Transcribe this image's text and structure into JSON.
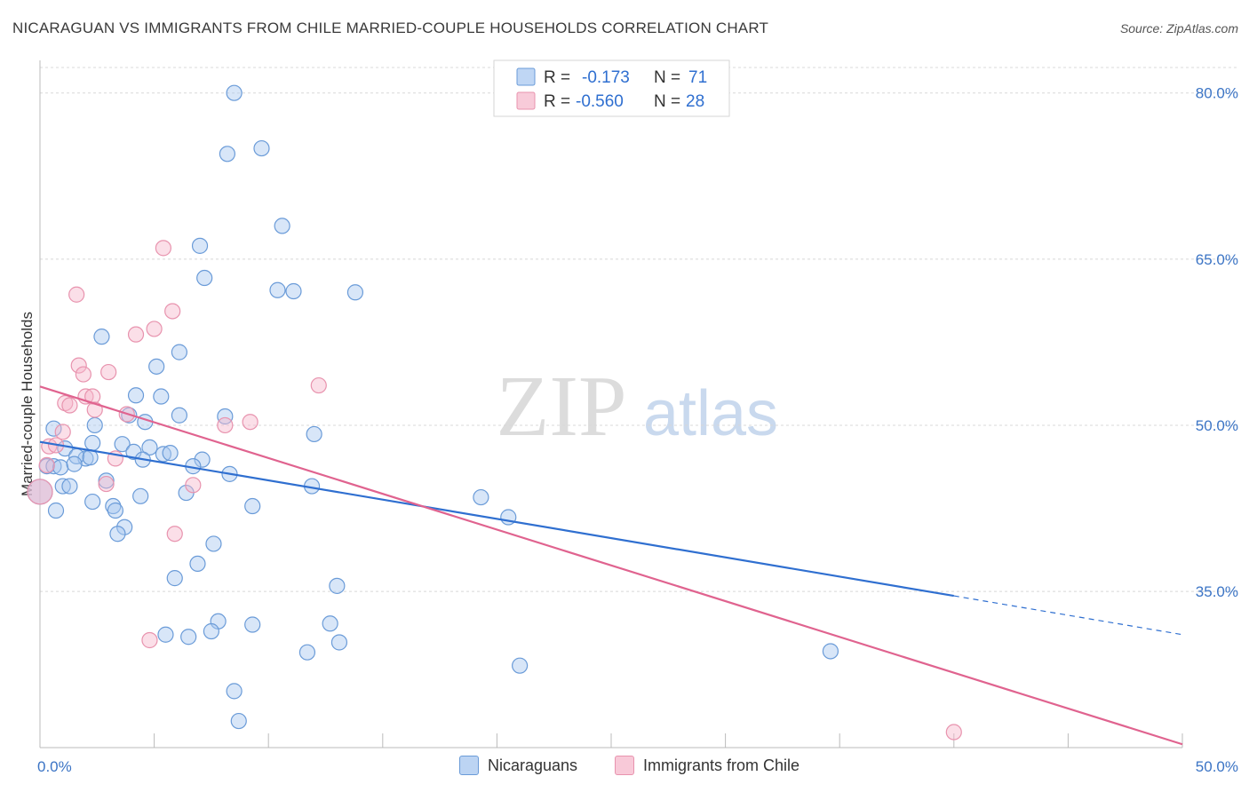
{
  "title": "NICARAGUAN VS IMMIGRANTS FROM CHILE MARRIED-COUPLE HOUSEHOLDS CORRELATION CHART",
  "source": "Source: ZipAtlas.com",
  "watermark": {
    "zip": "ZIP",
    "atlas": "atlas"
  },
  "legend": {
    "series1": {
      "r_label": "R =",
      "r_value": "-0.173",
      "n_label": "N =",
      "n_value": "71"
    },
    "series2": {
      "r_label": "R =",
      "r_value": "-0.560",
      "n_label": "N =",
      "n_value": "28"
    }
  },
  "colors": {
    "blue_fill": "#a9c8f0",
    "blue_stroke": "#6a9bd8",
    "blue_line": "#2f6fd0",
    "pink_fill": "#f6b9cc",
    "pink_stroke": "#e893ae",
    "pink_line": "#e0638f",
    "grid": "#d8d8d8",
    "tick_text": "#3b74c5"
  },
  "chart_data": {
    "type": "scatter",
    "title": "NICARAGUAN VS IMMIGRANTS FROM CHILE MARRIED-COUPLE HOUSEHOLDS CORRELATION CHART",
    "xlabel": "",
    "ylabel": "Married-couple Households",
    "xlim": [
      0,
      50
    ],
    "ylim": [
      20.9,
      82.3
    ],
    "x_tick_labels": [
      "0.0%",
      "50.0%"
    ],
    "y_ticks": [
      35,
      50,
      65,
      80
    ],
    "y_tick_labels": [
      "35.0%",
      "50.0%",
      "65.0%",
      "80.0%"
    ],
    "grid": true,
    "legend_position": "bottom",
    "series": [
      {
        "name": "Nicaraguans",
        "color": "#a9c8f0",
        "points": [
          [
            8.5,
            80.0
          ],
          [
            9.7,
            75.0
          ],
          [
            8.2,
            74.5
          ],
          [
            10.6,
            68.0
          ],
          [
            7.0,
            66.2
          ],
          [
            7.2,
            63.3
          ],
          [
            10.4,
            62.2
          ],
          [
            11.1,
            62.1
          ],
          [
            13.8,
            62.0
          ],
          [
            2.7,
            58.0
          ],
          [
            6.1,
            56.6
          ],
          [
            5.1,
            55.3
          ],
          [
            4.2,
            52.7
          ],
          [
            5.3,
            52.6
          ],
          [
            2.4,
            50.0
          ],
          [
            3.9,
            50.9
          ],
          [
            4.6,
            50.3
          ],
          [
            6.1,
            50.9
          ],
          [
            8.1,
            50.8
          ],
          [
            0.6,
            49.7
          ],
          [
            12.0,
            49.2
          ],
          [
            2.3,
            48.4
          ],
          [
            3.6,
            48.3
          ],
          [
            4.8,
            48.0
          ],
          [
            1.1,
            47.9
          ],
          [
            4.1,
            47.6
          ],
          [
            5.4,
            47.4
          ],
          [
            5.7,
            47.5
          ],
          [
            2.0,
            47.0
          ],
          [
            1.6,
            47.2
          ],
          [
            2.2,
            47.1
          ],
          [
            4.5,
            46.9
          ],
          [
            7.1,
            46.9
          ],
          [
            6.7,
            46.3
          ],
          [
            0.3,
            46.3
          ],
          [
            0.6,
            46.3
          ],
          [
            0.9,
            46.2
          ],
          [
            1.5,
            46.5
          ],
          [
            8.3,
            45.6
          ],
          [
            2.9,
            45.0
          ],
          [
            1.0,
            44.5
          ],
          [
            1.3,
            44.5
          ],
          [
            11.9,
            44.5
          ],
          [
            0.0,
            44.0
          ],
          [
            6.4,
            43.9
          ],
          [
            4.4,
            43.6
          ],
          [
            19.3,
            43.5
          ],
          [
            2.3,
            43.1
          ],
          [
            0.7,
            42.3
          ],
          [
            9.3,
            42.7
          ],
          [
            3.2,
            42.7
          ],
          [
            3.3,
            42.3
          ],
          [
            20.5,
            41.7
          ],
          [
            3.7,
            40.8
          ],
          [
            3.4,
            40.2
          ],
          [
            7.6,
            39.3
          ],
          [
            6.9,
            37.5
          ],
          [
            5.9,
            36.2
          ],
          [
            13.0,
            35.5
          ],
          [
            7.8,
            32.3
          ],
          [
            9.3,
            32.0
          ],
          [
            12.7,
            32.1
          ],
          [
            5.5,
            31.1
          ],
          [
            6.5,
            30.9
          ],
          [
            7.5,
            31.4
          ],
          [
            13.1,
            30.4
          ],
          [
            11.7,
            29.5
          ],
          [
            34.6,
            29.6
          ],
          [
            21.0,
            28.3
          ],
          [
            8.5,
            26.0
          ],
          [
            8.7,
            23.3
          ]
        ]
      },
      {
        "name": "Immigrants from Chile",
        "color": "#f6b9cc",
        "points": [
          [
            5.4,
            66.0
          ],
          [
            1.6,
            61.8
          ],
          [
            5.8,
            60.3
          ],
          [
            5.0,
            58.7
          ],
          [
            4.2,
            58.2
          ],
          [
            1.7,
            55.4
          ],
          [
            1.9,
            54.6
          ],
          [
            3.0,
            54.8
          ],
          [
            12.2,
            53.6
          ],
          [
            1.1,
            52.0
          ],
          [
            2.0,
            52.6
          ],
          [
            2.3,
            52.6
          ],
          [
            1.3,
            51.8
          ],
          [
            2.4,
            51.4
          ],
          [
            3.8,
            51.0
          ],
          [
            9.2,
            50.3
          ],
          [
            8.1,
            50.0
          ],
          [
            1.0,
            49.4
          ],
          [
            0.4,
            48.1
          ],
          [
            0.7,
            48.2
          ],
          [
            3.3,
            47.0
          ],
          [
            0.3,
            46.4
          ],
          [
            2.9,
            44.7
          ],
          [
            0.0,
            44.0
          ],
          [
            6.7,
            44.6
          ],
          [
            5.9,
            40.2
          ],
          [
            4.8,
            30.6
          ],
          [
            40.0,
            22.3
          ]
        ]
      }
    ],
    "trendlines": [
      {
        "series": "Nicaraguans",
        "solid": {
          "x": [
            0,
            40
          ],
          "y": [
            48.5,
            34.6
          ]
        },
        "dashed": {
          "x": [
            40,
            50
          ],
          "y": [
            34.6,
            31.1
          ]
        }
      },
      {
        "series": "Immigrants from Chile",
        "solid": {
          "x": [
            0,
            50
          ],
          "y": [
            53.5,
            21.2
          ]
        }
      }
    ]
  }
}
